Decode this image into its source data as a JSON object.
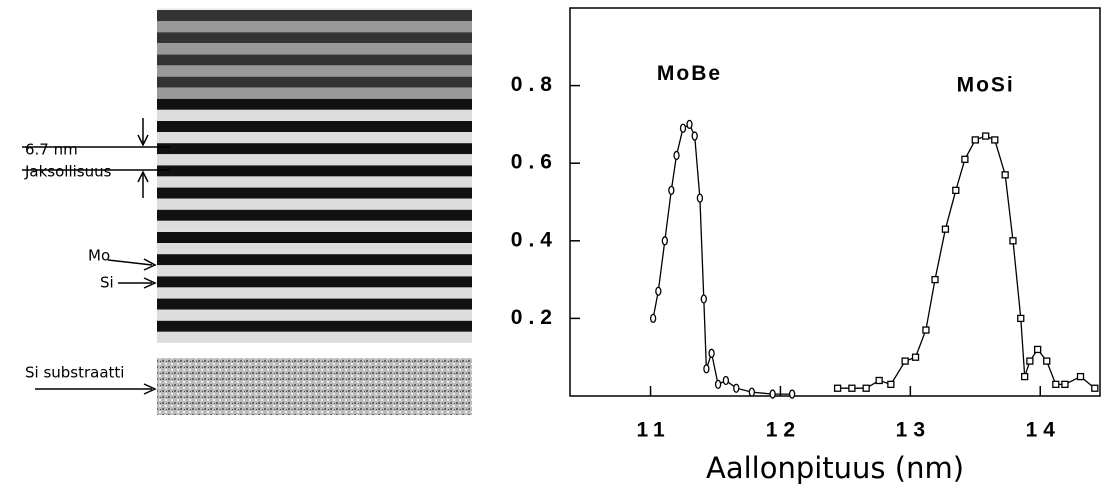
{
  "image": {
    "labels": [
      "6.7 nm",
      "Jaksollisuus",
      "Mo",
      "Si",
      "Si substraatti"
    ]
  },
  "chart_data": {
    "type": "line",
    "xlabel": "Aallonpituus (nm)",
    "xlim": [
      10.38,
      14.46
    ],
    "xticks": [
      11,
      12,
      13,
      14
    ],
    "ylim": [
      0,
      1.0
    ],
    "yticks": [
      0.2,
      0.4,
      0.6,
      0.8
    ],
    "series": [
      {
        "name": "MoBe",
        "color": "#000000",
        "marker": "circle",
        "x": [
          11.02,
          11.06,
          11.11,
          11.16,
          11.2,
          11.25,
          11.3,
          11.34,
          11.38,
          11.41,
          11.43,
          11.47,
          11.52,
          11.58,
          11.66,
          11.78,
          11.94,
          12.09
        ],
        "values": [
          0.2,
          0.27,
          0.4,
          0.53,
          0.62,
          0.69,
          0.7,
          0.67,
          0.51,
          0.25,
          0.07,
          0.11,
          0.03,
          0.04,
          0.02,
          0.01,
          0.005,
          0.005
        ]
      },
      {
        "name": "MoSi",
        "color": "#000000",
        "marker": "square",
        "x": [
          12.44,
          12.55,
          12.66,
          12.76,
          12.85,
          12.96,
          13.04,
          13.12,
          13.19,
          13.27,
          13.35,
          13.42,
          13.5,
          13.58,
          13.65,
          13.73,
          13.79,
          13.85,
          13.88,
          13.92,
          13.98,
          14.05,
          14.12,
          14.19,
          14.31,
          14.42
        ],
        "values": [
          0.02,
          0.02,
          0.02,
          0.04,
          0.03,
          0.09,
          0.1,
          0.17,
          0.3,
          0.43,
          0.53,
          0.61,
          0.66,
          0.67,
          0.66,
          0.57,
          0.4,
          0.2,
          0.05,
          0.09,
          0.12,
          0.09,
          0.03,
          0.03,
          0.05,
          0.02
        ]
      }
    ]
  }
}
